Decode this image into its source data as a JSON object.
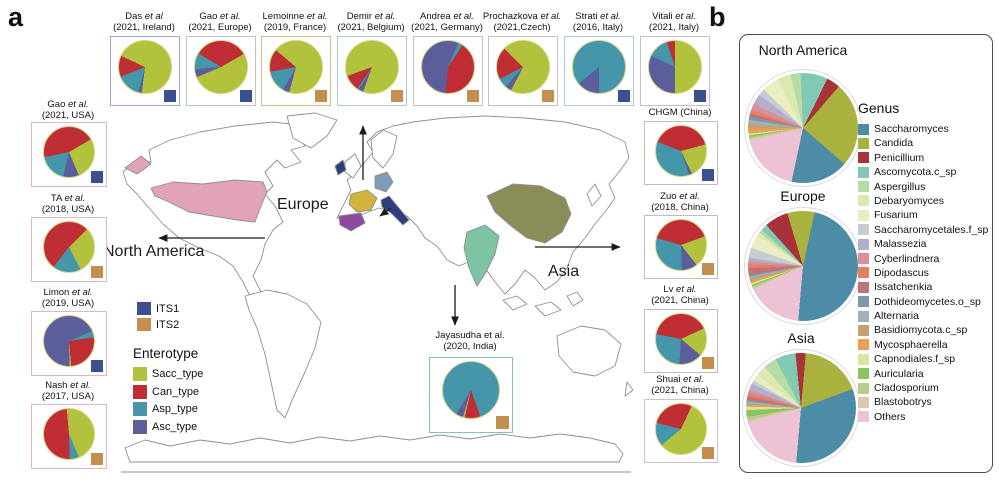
{
  "panel_a": {
    "label": "a",
    "map_labels": {
      "europe": "Europe",
      "north_america": "North America",
      "asia": "Asia"
    },
    "map_colors": {
      "usa": "#e2a3b9",
      "ireland": "#2e3f7d",
      "france": "#d4b33c",
      "spain": "#8e4a9e",
      "germany": "#7e9cb8",
      "italy": "#2e3f7d",
      "china": "#8a8d57",
      "india": "#7cc4a4"
    },
    "its_legend": [
      {
        "label": "ITS1",
        "color": "#3c5090"
      },
      {
        "label": "ITS2",
        "color": "#c28f4e"
      }
    ],
    "enterotype_legend": {
      "title": "Enterotype",
      "items": [
        {
          "label": "Sacc_type",
          "color": "#b2c23c"
        },
        {
          "label": "Can_type",
          "color": "#bf2e35"
        },
        {
          "label": "Asp_type",
          "color": "#4596ab"
        },
        {
          "label": "Asc_type",
          "color": "#5c5e9c"
        }
      ]
    },
    "studies": {
      "top": [
        {
          "chart": "das",
          "author": "Das",
          "etal": "et al",
          "info": "(2021, Ireland)",
          "its": "ITS1",
          "border": "#8fb0d8"
        },
        {
          "chart": "gao_europe",
          "author": "Gao",
          "etal": "et al.",
          "info": "(2021, Europe)",
          "its": "ITS1",
          "border": "#c2c2c2"
        },
        {
          "chart": "lemoinne",
          "author": "Lemoinne",
          "etal": "et al.",
          "info": "(2019, France)",
          "its": "ITS2",
          "border": "#d8b988"
        },
        {
          "chart": "demir",
          "author": "Demir",
          "etal": "et al.",
          "info": "(2021, Belgium)",
          "its": "ITS2",
          "border": "#a9c7e2"
        },
        {
          "chart": "andrea",
          "author": "Andrea",
          "etal": "et al.",
          "info": "(2021, Germany)",
          "its": "ITS2",
          "border": "#c2c2c2"
        },
        {
          "chart": "prochazkova",
          "author": "Prochazkova",
          "etal": "et al.",
          "info": "(2021,Czech)",
          "its": "ITS2",
          "border": "#c2c2c2"
        },
        {
          "chart": "strati",
          "author": "Strati",
          "etal": "et al.",
          "info": "(2016, Italy)",
          "its": "ITS1",
          "border": "#a9c7e2"
        },
        {
          "chart": "vitali",
          "author": "Vitali",
          "etal": "et al.",
          "info": "(2021, Italy)",
          "its": "ITS1",
          "border": "#c2c2c2"
        }
      ],
      "left": [
        {
          "chart": "gao_usa",
          "author": "Gao",
          "etal": "et al.",
          "info": "(2021, USA)",
          "its": "ITS1",
          "border": "#e3b6c6"
        },
        {
          "chart": "ta",
          "author": "TA",
          "etal": "et al.",
          "info": "(2018, USA)",
          "its": "ITS2",
          "border": "#e3b6c6"
        },
        {
          "chart": "limon",
          "author": "Limon",
          "etal": "et al.",
          "info": "(2019, USA)",
          "its": "ITS1",
          "border": "#e3b6c6"
        },
        {
          "chart": "nash",
          "author": "Nash",
          "etal": "et al.",
          "info": "(2017, USA)",
          "its": "ITS2",
          "border": "#e3b6c6"
        }
      ],
      "right": [
        {
          "chart": "chgm",
          "author": "CHGM (China)",
          "etal": "",
          "info": "",
          "its": "ITS1",
          "border": "#bdbdbd"
        },
        {
          "chart": "zuo",
          "author": "Zuo",
          "etal": "et al.",
          "info": "(2018, China)",
          "its": "ITS2",
          "border": "#bdbdbd"
        },
        {
          "chart": "lv",
          "author": "Lv",
          "etal": "et al.",
          "info": "(2021, China)",
          "its": "ITS2",
          "border": "#bdbdbd"
        },
        {
          "chart": "shuai",
          "author": "Shuai",
          "etal": "et al.",
          "info": "(2021, China)",
          "its": "ITS2",
          "border": "#d8bcc4"
        }
      ],
      "india": {
        "chart": "jayasudha",
        "author": "Jayasudha et al.",
        "etal": "",
        "info": "(2020, India)",
        "its": "ITS2",
        "border": "#85c2b2"
      }
    }
  },
  "panel_b": {
    "label": "b",
    "genus_legend": {
      "title": "Genus",
      "items": [
        {
          "label": "Saccharomyces",
          "color": "#4d8ca6"
        },
        {
          "label": "Candida",
          "color": "#a9b23e"
        },
        {
          "label": "Penicillium",
          "color": "#a93238"
        },
        {
          "label": "Ascomycota.c_sp",
          "color": "#82c9b3"
        },
        {
          "label": "Aspergillus",
          "color": "#b4dca4"
        },
        {
          "label": "Debaryomyces",
          "color": "#d9e9b0"
        },
        {
          "label": "Fusarium",
          "color": "#eaecc2"
        },
        {
          "label": "Saccharomycetales.f_sp",
          "color": "#c6cdd1"
        },
        {
          "label": "Malassezia",
          "color": "#b3aecb"
        },
        {
          "label": "Cyberlindnera",
          "color": "#d98f97"
        },
        {
          "label": "Dipodascus",
          "color": "#e57e62"
        },
        {
          "label": "Issatchenkia",
          "color": "#c17278"
        },
        {
          "label": "Dothideomycetes.o_sp",
          "color": "#7d98ab"
        },
        {
          "label": "Alternaria",
          "color": "#9cb4bd"
        },
        {
          "label": "Basidiomycota.c_sp",
          "color": "#c2a173"
        },
        {
          "label": "Mycosphaerella",
          "color": "#e9a159"
        },
        {
          "label": "Capnodiales.f_sp",
          "color": "#dce39a"
        },
        {
          "label": "Auricularia",
          "color": "#8bc361"
        },
        {
          "label": "Cladosporium",
          "color": "#b6cd8e"
        },
        {
          "label": "Blastobotrys",
          "color": "#dbc9a9"
        },
        {
          "label": "Others",
          "color": "#edc2d5"
        }
      ]
    },
    "regions": [
      {
        "chart": "region_north_america",
        "title": "North America"
      },
      {
        "chart": "region_europe",
        "title": "Europe"
      },
      {
        "chart": "region_asia",
        "title": "Asia"
      }
    ]
  },
  "chart_data": [
    {
      "id": "das",
      "type": "pie",
      "title": "Das et al (2021, Ireland)",
      "labels": [
        "Sacc_type",
        "Can_type",
        "Asp_type",
        "Asc_type"
      ],
      "values": [
        70,
        13,
        15,
        2
      ],
      "start_angle": 295,
      "marker": "ITS1"
    },
    {
      "id": "gao_europe",
      "type": "pie",
      "title": "Gao et al. (2021, Europe)",
      "labels": [
        "Sacc_type",
        "Can_type",
        "Asp_type",
        "Asc_type"
      ],
      "values": [
        52,
        33,
        10,
        5
      ],
      "start_angle": 60,
      "marker": "ITS1"
    },
    {
      "id": "lemoinne",
      "type": "pie",
      "title": "Lemoinne et al. (2019, France)",
      "labels": [
        "Sacc_type",
        "Can_type",
        "Asp_type",
        "Asc_type"
      ],
      "values": [
        68,
        14,
        14,
        4
      ],
      "start_angle": 310,
      "marker": "ITS2"
    },
    {
      "id": "demir",
      "type": "pie",
      "title": "Demir et al. (2021, Belgium)",
      "labels": [
        "Sacc_type",
        "Can_type",
        "Asp_type",
        "Asc_type"
      ],
      "values": [
        86,
        10,
        1,
        3
      ],
      "start_angle": 250,
      "marker": "ITS2"
    },
    {
      "id": "andrea",
      "type": "pie",
      "title": "Andrea et al. (2021, Germany)",
      "labels": [
        "Sacc_type",
        "Can_type",
        "Asp_type",
        "Asc_type"
      ],
      "values": [
        0,
        42,
        3,
        55
      ],
      "start_angle": 185,
      "marker": "ITS2"
    },
    {
      "id": "prochazkova",
      "type": "pie",
      "title": "Prochazkova et al. (2021,Czech)",
      "labels": [
        "Sacc_type",
        "Can_type",
        "Asp_type",
        "Asc_type"
      ],
      "values": [
        70,
        20,
        6,
        4
      ],
      "start_angle": 315,
      "marker": "ITS2"
    },
    {
      "id": "strati",
      "type": "pie",
      "title": "Strati et al. (2016, Italy)",
      "labels": [
        "Sacc_type",
        "Can_type",
        "Asp_type",
        "Asc_type"
      ],
      "values": [
        0,
        0,
        86,
        14
      ],
      "start_angle": 180,
      "marker": "ITS1"
    },
    {
      "id": "vitali",
      "type": "pie",
      "title": "Vitali et al. (2021, Italy)",
      "labels": [
        "Sacc_type",
        "Can_type",
        "Asp_type",
        "Asc_type"
      ],
      "values": [
        50,
        5,
        13,
        32
      ],
      "start_angle": 0,
      "marker": "ITS1"
    },
    {
      "id": "gao_usa",
      "type": "pie",
      "title": "Gao et al. (2021, USA)",
      "labels": [
        "Sacc_type",
        "Can_type",
        "Asp_type",
        "Asc_type"
      ],
      "values": [
        27,
        45,
        18,
        10
      ],
      "start_angle": 60,
      "marker": "ITS1"
    },
    {
      "id": "ta",
      "type": "pie",
      "title": "TA et al. (2018, USA)",
      "labels": [
        "Sacc_type",
        "Can_type",
        "Asp_type",
        "Asc_type"
      ],
      "values": [
        30,
        52,
        18,
        0
      ],
      "start_angle": 45,
      "marker": "ITS2"
    },
    {
      "id": "limon",
      "type": "pie",
      "title": "Limon et al. (2019, USA)",
      "labels": [
        "Sacc_type",
        "Can_type",
        "Asp_type",
        "Asc_type"
      ],
      "values": [
        1,
        26,
        4,
        69
      ],
      "start_angle": 175,
      "marker": "ITS1"
    },
    {
      "id": "nash",
      "type": "pie",
      "title": "Nash et al. (2017, USA)",
      "labels": [
        "Sacc_type",
        "Can_type",
        "Asp_type",
        "Asc_type"
      ],
      "values": [
        45,
        49,
        6,
        0
      ],
      "start_angle": 355,
      "marker": "ITS2"
    },
    {
      "id": "chgm",
      "type": "pie",
      "title": "CHGM (China)",
      "labels": [
        "Sacc_type",
        "Can_type",
        "Asp_type",
        "Asc_type"
      ],
      "values": [
        22,
        40,
        36,
        2
      ],
      "start_angle": 75,
      "marker": "ITS1"
    },
    {
      "id": "zuo",
      "type": "pie",
      "title": "Zuo et al. (2018, China)",
      "labels": [
        "Sacc_type",
        "Can_type",
        "Asp_type",
        "Asc_type"
      ],
      "values": [
        20,
        40,
        30,
        10
      ],
      "start_angle": 70,
      "marker": "ITS2"
    },
    {
      "id": "lv",
      "type": "pie",
      "title": "Lv et al. (2021, China)",
      "labels": [
        "Sacc_type",
        "Can_type",
        "Asp_type",
        "Asc_type"
      ],
      "values": [
        18,
        40,
        27,
        15
      ],
      "start_angle": 65,
      "marker": "ITS2"
    },
    {
      "id": "shuai",
      "type": "pie",
      "title": "Shuai et al. (2021, China)",
      "labels": [
        "Sacc_type",
        "Can_type",
        "Asp_type",
        "Asc_type"
      ],
      "values": [
        57,
        28,
        15,
        0
      ],
      "start_angle": 25,
      "marker": "ITS2"
    },
    {
      "id": "jayasudha",
      "type": "pie",
      "title": "Jayasudha et al. (2020, India)",
      "labels": [
        "Sacc_type",
        "Can_type",
        "Asp_type",
        "Asc_type"
      ],
      "values": [
        1,
        9,
        86,
        4
      ],
      "start_angle": 193,
      "marker": "ITS2"
    },
    {
      "id": "region_north_america",
      "type": "pie",
      "title": "North America",
      "labels": [
        "Saccharomyces",
        "Candida",
        "Penicillium",
        "Ascomycota.c_sp",
        "Aspergillus",
        "Debaryomyces",
        "Fusarium",
        "Saccharomycetales.f_sp",
        "Malassezia",
        "Cyberlindnera",
        "Dipodascus",
        "Issatchenkia",
        "Dothideomycetes.o_sp",
        "Alternaria",
        "Basidiomycota.c_sp",
        "Mycosphaerella",
        "Capnodiales.f_sp",
        "Auricularia",
        "Cladosporium",
        "Blastobotrys",
        "Others"
      ],
      "values": [
        17,
        25,
        4,
        8,
        3,
        4,
        5,
        2,
        3,
        2,
        1,
        1,
        1,
        1,
        1.5,
        1.5,
        0.5,
        0.5,
        0.5,
        0.5,
        18
      ],
      "start_angle": 192
    },
    {
      "id": "region_europe",
      "type": "pie",
      "title": "Europe",
      "labels": [
        "Saccharomyces",
        "Candida",
        "Penicillium",
        "Ascomycota.c_sp",
        "Aspergillus",
        "Debaryomyces",
        "Fusarium",
        "Saccharomycetales.f_sp",
        "Malassezia",
        "Cyberlindnera",
        "Dipodascus",
        "Issatchenkia",
        "Dothideomycetes.o_sp",
        "Alternaria",
        "Basidiomycota.c_sp",
        "Mycosphaerella",
        "Capnodiales.f_sp",
        "Auricularia",
        "Cladosporium",
        "Blastobotrys",
        "Others"
      ],
      "values": [
        48,
        8,
        7,
        2,
        1,
        1,
        4,
        3,
        1,
        1,
        1,
        2,
        0.5,
        0.5,
        1,
        0.5,
        0.5,
        0.5,
        0.5,
        0.5,
        16.5
      ],
      "start_angle": 185
    },
    {
      "id": "region_asia",
      "type": "pie",
      "title": "Asia",
      "labels": [
        "Saccharomyces",
        "Candida",
        "Penicillium",
        "Ascomycota.c_sp",
        "Aspergillus",
        "Debaryomyces",
        "Fusarium",
        "Saccharomycetales.f_sp",
        "Malassezia",
        "Cyberlindnera",
        "Dipodascus",
        "Issatchenkia",
        "Dothideomycetes.o_sp",
        "Alternaria",
        "Basidiomycota.c_sp",
        "Mycosphaerella",
        "Capnodiales.f_sp",
        "Auricularia",
        "Cladosporium",
        "Blastobotrys",
        "Others"
      ],
      "values": [
        32,
        18,
        3,
        6,
        4,
        3,
        2,
        1,
        2,
        1,
        1,
        1,
        0.5,
        0.5,
        0.5,
        0.5,
        1,
        2,
        1,
        0.5,
        19.5
      ],
      "start_angle": 185
    }
  ]
}
